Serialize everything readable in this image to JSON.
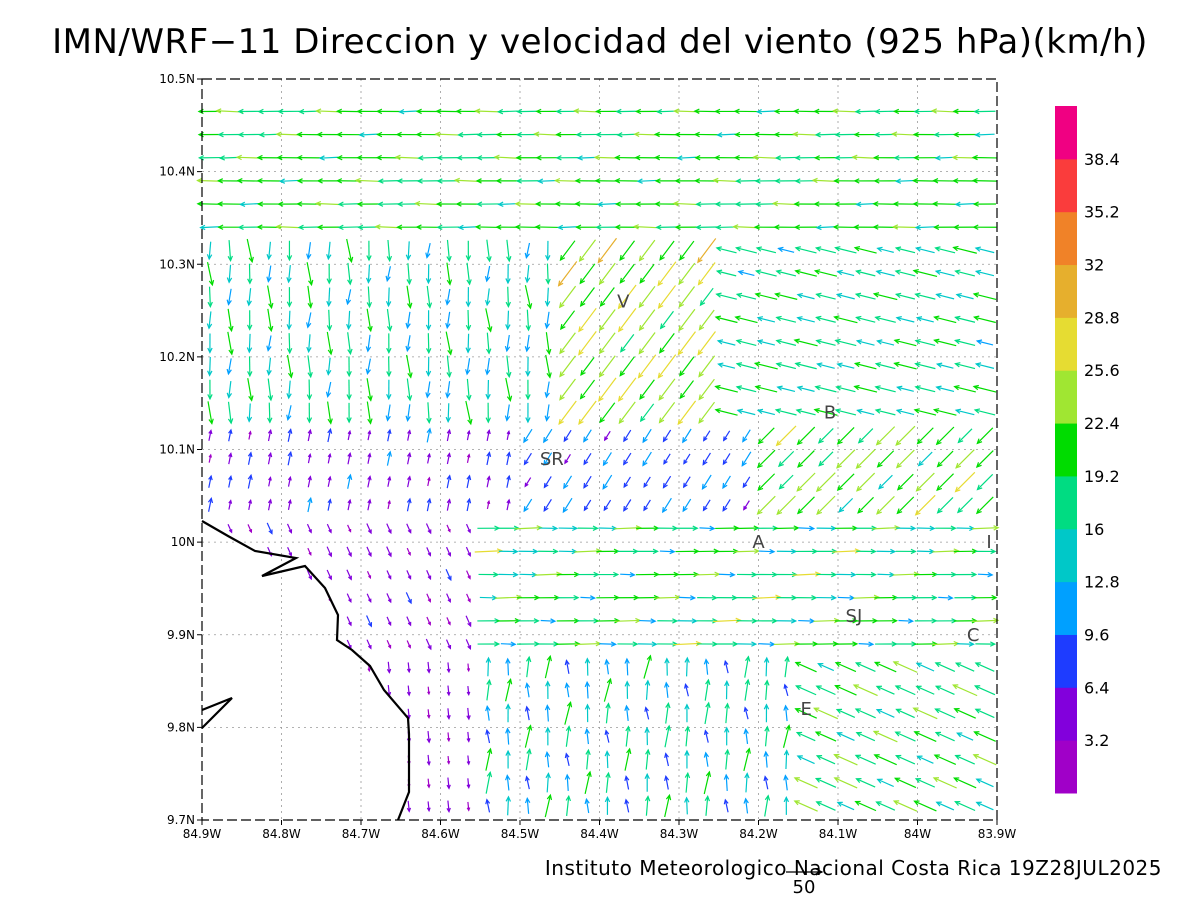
{
  "title": "IMN/WRF−11 Direccion y velocidad del viento (925 hPa)(km/h)",
  "footer": "Instituto Meteorologico Nacional Costa Rica 19Z28JUL2025",
  "reference_vector": {
    "label": "50",
    "speed_kmh": 50
  },
  "map": {
    "lon_range": [
      -84.9,
      -83.9
    ],
    "lat_range": [
      9.7,
      10.5
    ],
    "lon_ticks": [
      "84.9W",
      "84.8W",
      "84.7W",
      "84.6W",
      "84.5W",
      "84.4W",
      "84.3W",
      "84.2W",
      "84.1W",
      "84W",
      "83.9W"
    ],
    "lat_ticks": [
      "9.7N",
      "9.8N",
      "9.9N",
      "10N",
      "10.1N",
      "10.2N",
      "10.3N",
      "10.4N",
      "10.5N"
    ],
    "gridlines": true,
    "places": [
      {
        "name": "V",
        "lon": -84.37,
        "lat": 10.26
      },
      {
        "name": "B",
        "lon": -84.11,
        "lat": 10.14
      },
      {
        "name": "SR",
        "lon": -84.46,
        "lat": 10.09
      },
      {
        "name": "A",
        "lon": -84.2,
        "lat": 10.0
      },
      {
        "name": "I",
        "lon": -83.91,
        "lat": 10.0
      },
      {
        "name": "SJ",
        "lon": -84.08,
        "lat": 9.92
      },
      {
        "name": "C",
        "lon": -83.93,
        "lat": 9.9
      },
      {
        "name": "E",
        "lon": -84.14,
        "lat": 9.82
      }
    ]
  },
  "colorbar": {
    "colors": [
      "#a000c8",
      "#8200dc",
      "#1e3cff",
      "#00a0ff",
      "#00c8c8",
      "#00dc82",
      "#00dc00",
      "#a0e632",
      "#e6dc32",
      "#e6af2d",
      "#f08228",
      "#fa3c3c",
      "#f00082"
    ],
    "labels": [
      "3.2",
      "6.4",
      "9.6",
      "12.8",
      "16",
      "19.2",
      "22.4",
      "25.6",
      "28.8",
      "32",
      "35.2",
      "38.4"
    ]
  }
}
